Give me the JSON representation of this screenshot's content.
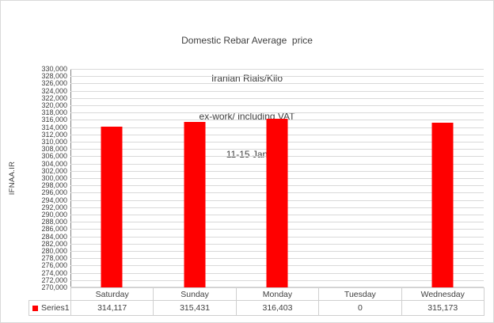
{
  "title": {
    "line1": "Domestic Rebar Average  price",
    "line2": "Iranian Rials/Kilo",
    "line3": "ex-work/ including VAT",
    "line4": "11-15 Jan"
  },
  "chart_data": {
    "type": "bar",
    "title": "Domestic Rebar Average price",
    "subtitle_lines": [
      "Iranian Rials/Kilo",
      "ex-work/ including VAT",
      "11-15 Jan"
    ],
    "categories": [
      "Saturday",
      "Sunday",
      "Monday",
      "Tuesday",
      "Wednesday"
    ],
    "series": [
      {
        "name": "Series1",
        "values": [
          314117,
          315431,
          316403,
          0,
          315173
        ]
      }
    ],
    "xlabel": "",
    "ylabel": "IFNAA.IR",
    "ylim": [
      270000,
      330000
    ],
    "ytick_step": 2000,
    "grid": true,
    "legend_position": "data-table-left",
    "data_table": true
  },
  "colors": {
    "bar": "#FF0000",
    "gridline": "#D9D9D9",
    "axis_line": "#808080",
    "text": "#404040",
    "table_border": "#CFCFCF",
    "chart_border": "#D9D9D9",
    "background": "#FFFFFF"
  }
}
